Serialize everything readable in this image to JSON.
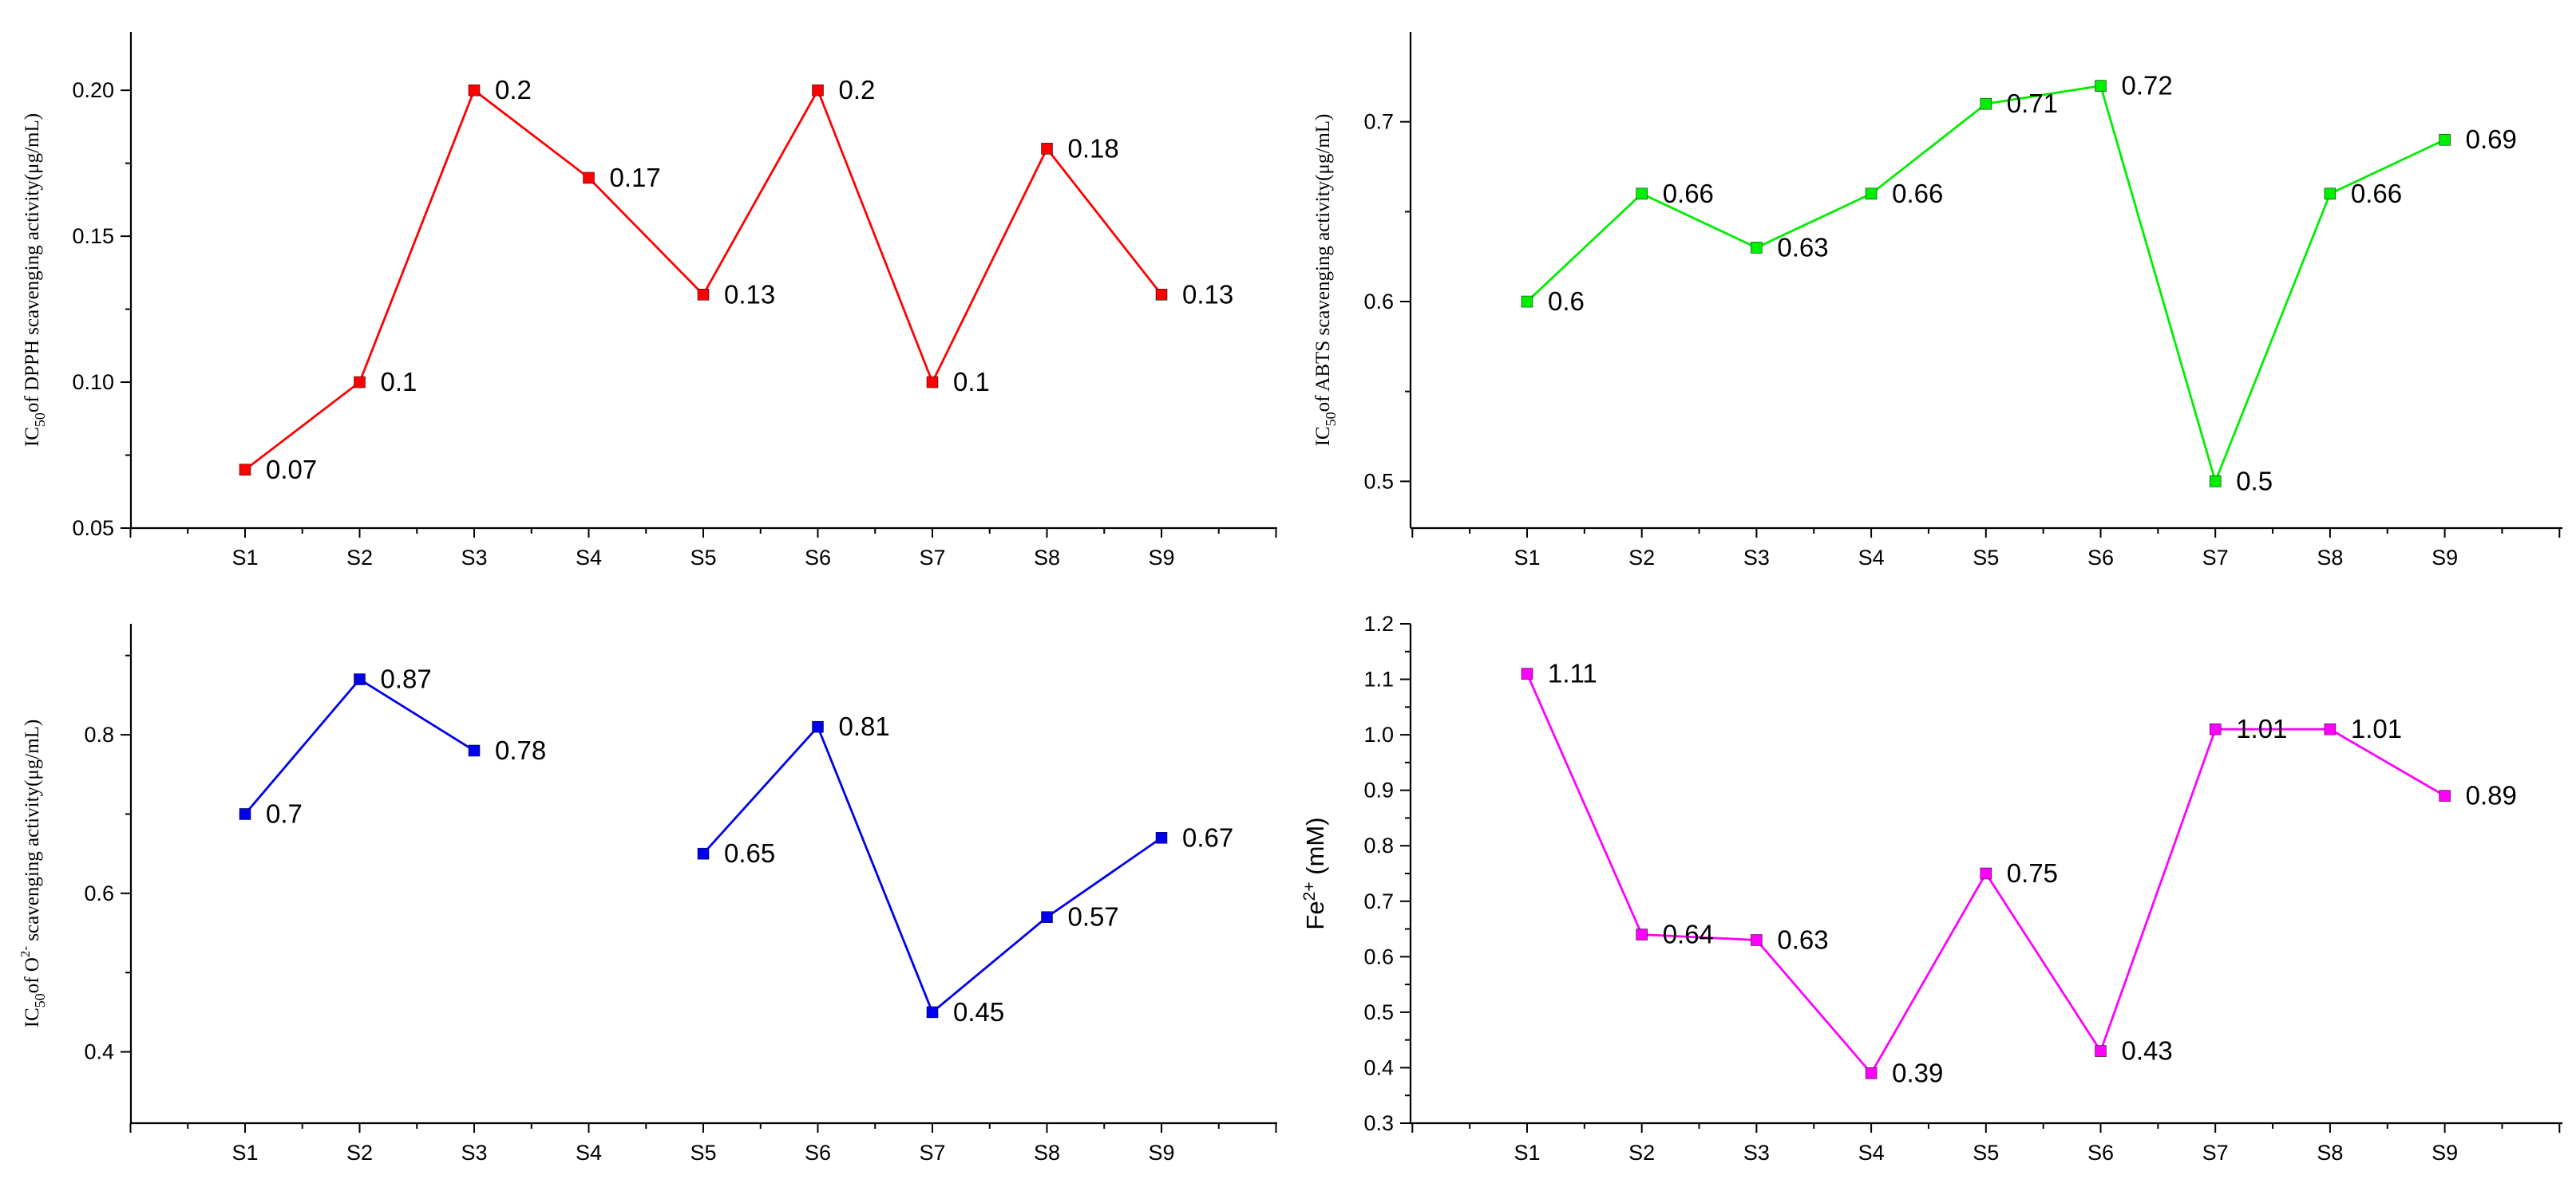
{
  "chart_data": [
    {
      "type": "line",
      "categories": [
        "S1",
        "S2",
        "S3",
        "S4",
        "S5",
        "S6",
        "S7",
        "S8",
        "S9"
      ],
      "ylim": [
        0.05,
        0.22
      ],
      "yticks": [
        0.05,
        0.1,
        0.15,
        0.2
      ],
      "ytick_labels": [
        "0.05",
        "0.10",
        "0.15",
        "0.20"
      ],
      "ylabel_parts": [
        "IC",
        "50",
        "of DPPH scavenging activity(μg/mL)"
      ],
      "color": "#ff0000",
      "series": [
        {
          "name": "DPPH",
          "values": [
            0.07,
            0.1,
            0.2,
            0.17,
            0.13,
            0.2,
            0.1,
            0.18,
            0.13
          ]
        }
      ],
      "labels": [
        "0.07",
        "0.1",
        "0.2",
        "0.17",
        "0.13",
        "0.2",
        "0.1",
        "0.18",
        "0.13"
      ]
    },
    {
      "type": "line",
      "categories": [
        "S1",
        "S2",
        "S3",
        "S4",
        "S5",
        "S6",
        "S7",
        "S8",
        "S9"
      ],
      "ylim": [
        0.474,
        0.75
      ],
      "yticks": [
        0.5,
        0.6,
        0.7
      ],
      "ytick_labels": [
        "0.5",
        "0.6",
        "0.7"
      ],
      "ylabel_parts": [
        "IC",
        "50",
        "of ABTS scavenging activity(μg/mL)"
      ],
      "color": "#00ee00",
      "series": [
        {
          "name": "ABTS",
          "values": [
            0.6,
            0.66,
            0.63,
            0.66,
            0.71,
            0.72,
            0.5,
            0.66,
            0.69
          ]
        }
      ],
      "labels": [
        "0.6",
        "0.66",
        "0.63",
        "0.66",
        "0.71",
        "0.72",
        "0.5",
        "0.66",
        "0.69"
      ]
    },
    {
      "type": "line",
      "categories": [
        "S1",
        "S2",
        "S3",
        "S4",
        "S5",
        "S6",
        "S7",
        "S8",
        "S9"
      ],
      "ylim": [
        0.31,
        0.94
      ],
      "yticks": [
        0.4,
        0.6,
        0.8
      ],
      "ytick_labels": [
        "0.4",
        "0.6",
        "0.8"
      ],
      "ylabel_parts": [
        "IC",
        "50",
        "of O",
        "2-",
        " scavenging activity(μg/mL)"
      ],
      "color": "#0000ee",
      "series": [
        {
          "name": "Superoxide",
          "values": [
            0.7,
            0.87,
            0.78,
            null,
            0.65,
            0.81,
            0.45,
            0.57,
            0.67
          ]
        }
      ],
      "labels": [
        "0.7",
        "0.87",
        "0.78",
        "",
        "0.65",
        "0.81",
        "0.45",
        "0.57",
        "0.67"
      ]
    },
    {
      "type": "line",
      "categories": [
        "S1",
        "S2",
        "S3",
        "S4",
        "S5",
        "S6",
        "S7",
        "S8",
        "S9"
      ],
      "ylim": [
        0.3,
        1.2
      ],
      "yticks": [
        0.3,
        0.4,
        0.5,
        0.6,
        0.7,
        0.8,
        0.9,
        1.0,
        1.1,
        1.2
      ],
      "ytick_labels": [
        "0.3",
        "0.4",
        "0.5",
        "0.6",
        "0.7",
        "0.8",
        "0.9",
        "1.0",
        "1.1",
        "1.2"
      ],
      "ylabel_parts": [
        "Fe",
        "2+",
        " (mM)"
      ],
      "color": "#ff00ff",
      "series": [
        {
          "name": "Fe2+",
          "values": [
            1.11,
            0.64,
            0.63,
            0.39,
            0.75,
            0.43,
            1.01,
            1.01,
            0.89
          ]
        }
      ],
      "labels": [
        "1.11",
        "0.64",
        "0.63",
        "0.39",
        "0.75",
        "0.43",
        "1.01",
        "1.01",
        "0.89"
      ]
    }
  ]
}
